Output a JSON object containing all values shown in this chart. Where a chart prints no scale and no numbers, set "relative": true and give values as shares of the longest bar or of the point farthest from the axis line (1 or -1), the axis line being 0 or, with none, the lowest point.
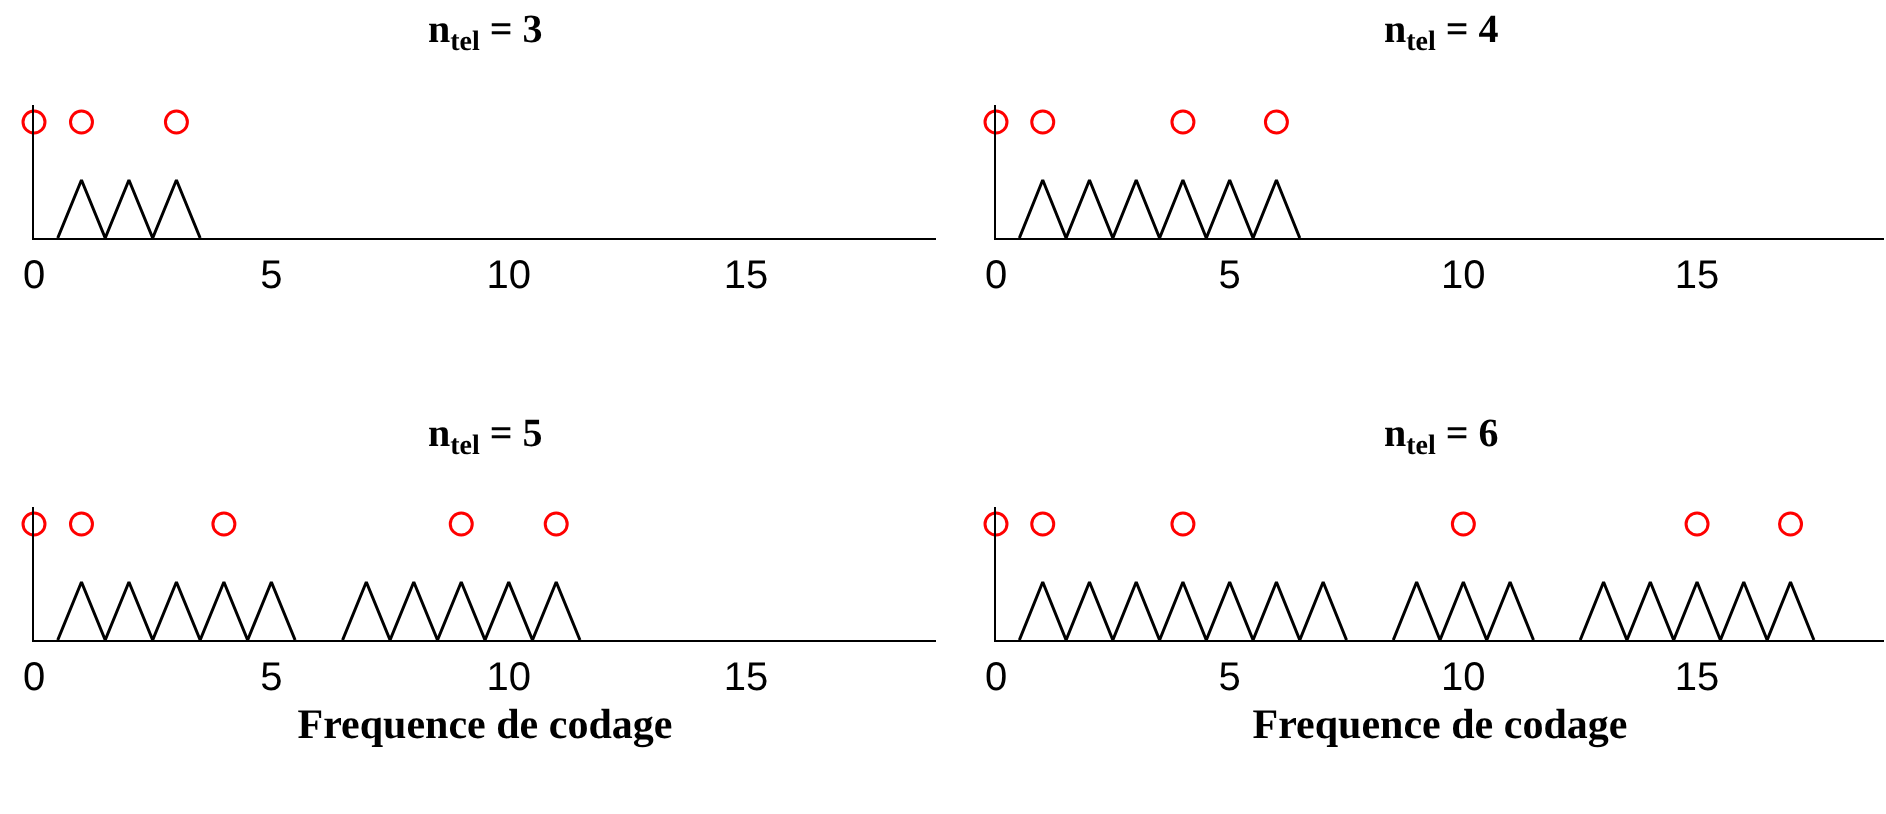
{
  "chart_data": [
    {
      "type": "line",
      "title": "n$_{tel}$ = 3",
      "relative": true,
      "xlim": [
        0,
        19
      ],
      "xticks": [
        0,
        5,
        10,
        15
      ],
      "tick_labels": "x",
      "series": [
        {
          "type": "line",
          "color": "#000000",
          "marker": "none",
          "x": [
            0.5,
            1,
            1.5,
            2,
            2.5,
            3,
            3.5
          ],
          "values": [
            0,
            0.5,
            0,
            0.5,
            0,
            0.5,
            0
          ]
        },
        {
          "type": "scatter",
          "color": "#ff0000",
          "marker": "circle",
          "x": [
            0,
            1,
            3
          ],
          "values": [
            1,
            1,
            1
          ]
        }
      ]
    },
    {
      "type": "line",
      "title": "n$_{tel}$ = 4",
      "relative": true,
      "xlim": [
        0,
        19
      ],
      "xticks": [
        0,
        5,
        10,
        15
      ],
      "tick_labels": "x",
      "series": [
        {
          "type": "line",
          "color": "#000000",
          "marker": "none",
          "x": [
            0.5,
            1,
            1.5,
            2,
            2.5,
            3,
            3.5,
            4,
            4.5,
            5,
            5.5,
            6,
            6.5
          ],
          "values": [
            0,
            0.5,
            0,
            0.5,
            0,
            0.5,
            0,
            0.5,
            0,
            0.5,
            0,
            0.5,
            0
          ]
        },
        {
          "type": "scatter",
          "color": "#ff0000",
          "marker": "circle",
          "x": [
            0,
            1,
            4,
            6
          ],
          "values": [
            1,
            1,
            1,
            1
          ]
        }
      ]
    },
    {
      "type": "line",
      "title": "n$_{tel}$ = 5",
      "xlabel": "Frequence de codage",
      "relative": true,
      "xlim": [
        0,
        19
      ],
      "xticks": [
        0,
        5,
        10,
        15
      ],
      "tick_labels": "x",
      "series": [
        {
          "type": "line",
          "color": "#000000",
          "marker": "none",
          "x": [
            0.5,
            1,
            1.5,
            2,
            2.5,
            3,
            3.5,
            4,
            4.5,
            5,
            5.5,
            6,
            6.5,
            7,
            7.5,
            8,
            8.5,
            9,
            9.5,
            10,
            10.5,
            11,
            11.5
          ],
          "values": [
            0,
            0.5,
            0,
            0.5,
            0,
            0.5,
            0,
            0.5,
            0,
            0.5,
            0,
            null,
            0,
            0.5,
            0,
            0.5,
            0,
            0.5,
            0,
            0.5,
            0,
            0.5,
            0
          ]
        },
        {
          "type": "scatter",
          "color": "#ff0000",
          "marker": "circle",
          "x": [
            0,
            1,
            4,
            9,
            11
          ],
          "values": [
            1,
            1,
            1,
            1,
            1
          ]
        }
      ]
    },
    {
      "type": "line",
      "title": "n$_{tel}$ = 6",
      "xlabel": "Frequence de codage",
      "relative": true,
      "xlim": [
        0,
        19
      ],
      "xticks": [
        0,
        5,
        10,
        15
      ],
      "tick_labels": "x",
      "series": [
        {
          "type": "line",
          "color": "#000000",
          "marker": "none",
          "x": [
            0.5,
            1,
            1.5,
            2,
            2.5,
            3,
            3.5,
            4,
            4.5,
            5,
            5.5,
            6,
            6.5,
            7,
            7.5,
            8,
            8.5,
            9,
            9.5,
            10,
            10.5,
            11,
            11.5,
            12,
            12.5,
            13,
            13.5,
            14,
            14.5,
            15,
            15.5,
            16,
            16.5,
            17,
            17.5
          ],
          "values": [
            0,
            0.5,
            0,
            0.5,
            0,
            0.5,
            0,
            0.5,
            0,
            0.5,
            0,
            0.5,
            0,
            0.5,
            0,
            null,
            0,
            0.5,
            0,
            0.5,
            0,
            0.5,
            0,
            null,
            0,
            0.5,
            0,
            0.5,
            0,
            0.5,
            0,
            0.5,
            0,
            0.5,
            0
          ]
        },
        {
          "type": "scatter",
          "color": "#ff0000",
          "marker": "circle",
          "x": [
            0,
            1,
            4,
            10,
            15,
            17
          ],
          "values": [
            1,
            1,
            1,
            1,
            1,
            1
          ]
        }
      ]
    }
  ]
}
